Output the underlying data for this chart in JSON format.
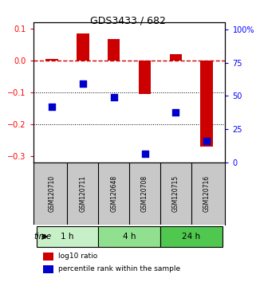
{
  "title": "GDS3433 / 682",
  "samples": [
    "GSM120710",
    "GSM120711",
    "GSM120648",
    "GSM120708",
    "GSM120715",
    "GSM120716"
  ],
  "time_groups": [
    {
      "label": "1 h",
      "color": "#c8f0c8",
      "samples": [
        0,
        1
      ]
    },
    {
      "label": "4 h",
      "color": "#90e090",
      "samples": [
        2,
        3
      ]
    },
    {
      "label": "24 h",
      "color": "#50c850",
      "samples": [
        4,
        5
      ]
    }
  ],
  "log10_ratio": [
    0.005,
    0.085,
    0.068,
    -0.105,
    0.022,
    -0.27
  ],
  "percentile_rank": [
    42,
    59,
    49,
    6.5,
    38,
    16
  ],
  "ylim_left": [
    -0.32,
    0.12
  ],
  "ylim_right": [
    0,
    105
  ],
  "yticks_left": [
    -0.3,
    -0.2,
    -0.1,
    0.0,
    0.1
  ],
  "yticks_right": [
    0,
    25,
    50,
    75,
    100
  ],
  "ytick_right_labels": [
    "0",
    "25",
    "50",
    "75",
    "100%"
  ],
  "bar_color": "#cc0000",
  "dot_color": "#0000cc",
  "zero_line_color": "#cc0000",
  "grid_line_color": "#000000",
  "bar_width": 0.4,
  "dot_size": 40,
  "background_color": "#ffffff",
  "plot_bg_color": "#ffffff",
  "sample_bg_color": "#c8c8c8",
  "time_label": "time"
}
